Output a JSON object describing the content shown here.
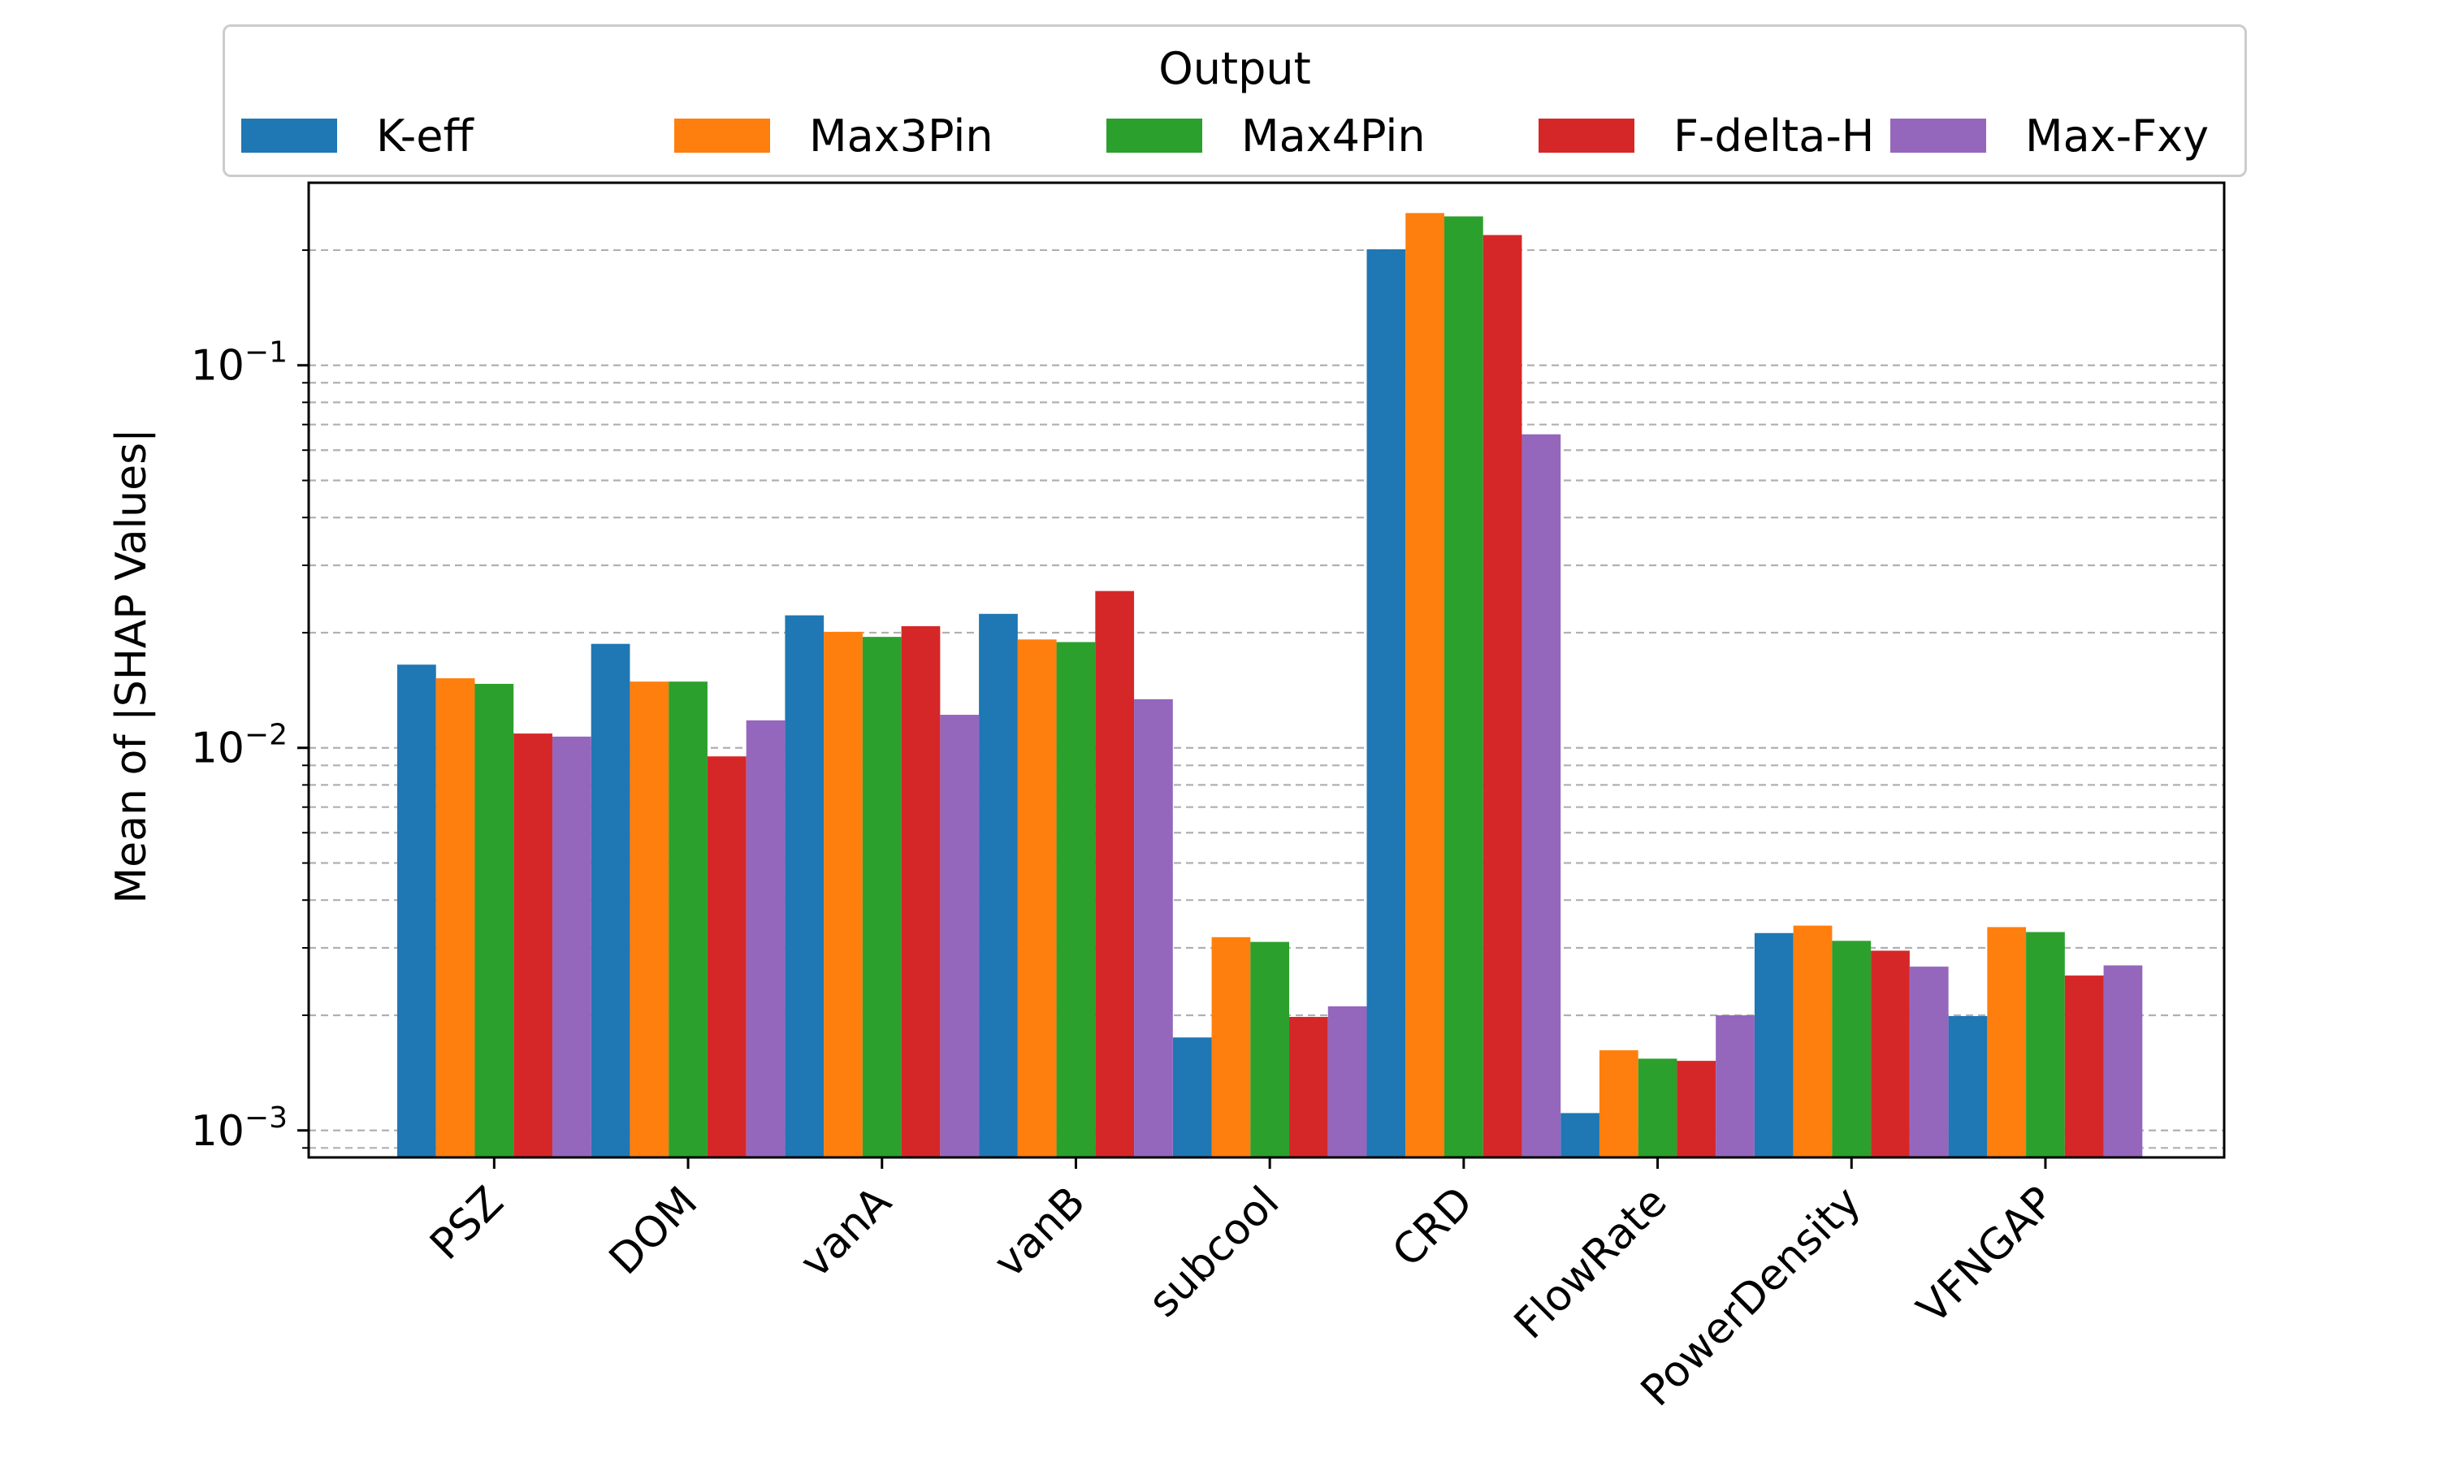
{
  "chart_data": {
    "type": "bar",
    "title": "",
    "xlabel": "",
    "ylabel": "Mean of |SHAP Values|",
    "yscale": "log",
    "ylim": [
      0.00085,
      0.3
    ],
    "ytick_labels": [
      {
        "value": 0.001,
        "base": "10",
        "exp": "−3"
      },
      {
        "value": 0.01,
        "base": "10",
        "exp": "−2"
      },
      {
        "value": 0.1,
        "base": "10",
        "exp": "−1"
      }
    ],
    "grid": "horizontal dashed (major and minor)",
    "legend": {
      "title": "Output",
      "placement": "top-center, above plot"
    },
    "categories": [
      "PSZ",
      "DOM",
      "vanA",
      "vanB",
      "subcool",
      "CRD",
      "FlowRate",
      "PowerDensity",
      "VFNGAP"
    ],
    "series": [
      {
        "name": "K-eff",
        "color": "#1f77b4",
        "values": [
          0.0165,
          0.0187,
          0.0222,
          0.0224,
          0.00175,
          0.201,
          0.00111,
          0.00328,
          0.00199
        ]
      },
      {
        "name": "Max3Pin",
        "color": "#ff7f0e",
        "values": [
          0.0152,
          0.0149,
          0.0201,
          0.0192,
          0.0032,
          0.25,
          0.00162,
          0.00343,
          0.0034
        ]
      },
      {
        "name": "Max4Pin",
        "color": "#2ca02c",
        "values": [
          0.0147,
          0.0149,
          0.0195,
          0.0189,
          0.00311,
          0.245,
          0.00154,
          0.00313,
          0.0033
        ]
      },
      {
        "name": "F-delta-H",
        "color": "#d62728",
        "values": [
          0.0109,
          0.0095,
          0.0208,
          0.0257,
          0.00198,
          0.219,
          0.00152,
          0.00295,
          0.00254
        ]
      },
      {
        "name": "Max-Fxy",
        "color": "#9467bd",
        "values": [
          0.0107,
          0.0118,
          0.0122,
          0.0134,
          0.00211,
          0.066,
          0.002,
          0.00268,
          0.0027
        ]
      }
    ]
  }
}
